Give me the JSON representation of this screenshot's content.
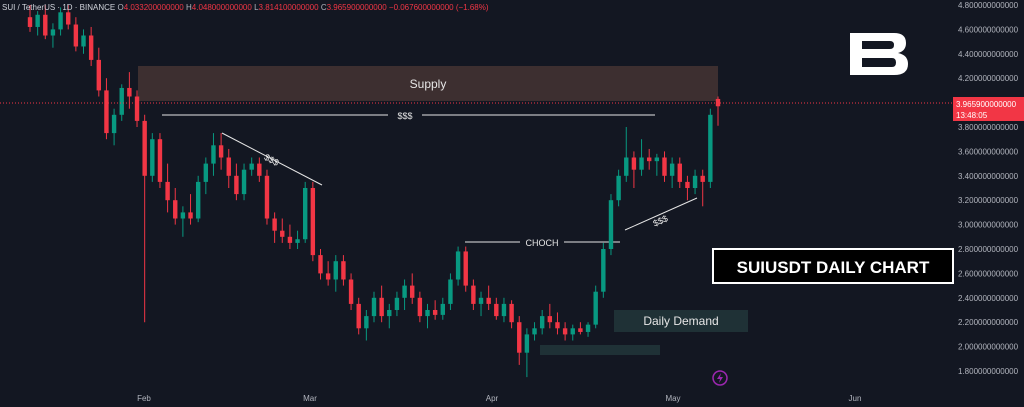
{
  "header": {
    "symbol": "SUI / TetherUS · 1D · BINANCE",
    "o_label": "O",
    "o_value": "4.033200000000",
    "h_label": "H",
    "h_value": "4.048000000000",
    "l_label": "L",
    "l_value": "3.814100000000",
    "c_label": "C",
    "c_value": "3.965900000000",
    "change": "−0.067600000000 (−1.68%)"
  },
  "colors": {
    "background": "#131722",
    "up": "#089981",
    "down": "#f23645",
    "text": "#d1d4dc",
    "grid_text": "#b2b5be",
    "supply_zone": "#3d2f30",
    "demand_zone": "#1f3136"
  },
  "annotations": {
    "supply_label": "Supply",
    "demand_label": "Daily Demand",
    "choch_label": "CHOCH",
    "liquidity_top": "$$$",
    "liquidity_left": "$$$",
    "liquidity_right": "$$$",
    "title_box": "SUIUSDT DAILY CHART"
  },
  "price_tag": {
    "price": "3.965900000000",
    "countdown": "13:48:05"
  },
  "logo_icon": "brand-b-logo-icon",
  "bolt_icon": "lightning-bolt-icon",
  "chart_data": {
    "type": "candlestick",
    "x_ticks": [
      "Feb",
      "Mar",
      "Apr",
      "May",
      "Jun"
    ],
    "y_ticks": [
      "4.800000000000",
      "4.600000000000",
      "4.400000000000",
      "4.200000000000",
      "4.000000000000",
      "3.800000000000",
      "3.600000000000",
      "3.400000000000",
      "3.200000000000",
      "3.000000000000",
      "2.800000000000",
      "2.600000000000",
      "2.400000000000",
      "2.200000000000",
      "2.000000000000",
      "1.800000000000"
    ],
    "ylim": [
      1.72,
      4.82
    ],
    "candles": [
      {
        "o": 4.7,
        "h": 4.8,
        "l": 4.58,
        "c": 4.62
      },
      {
        "o": 4.62,
        "h": 4.75,
        "l": 4.55,
        "c": 4.72
      },
      {
        "o": 4.72,
        "h": 4.8,
        "l": 4.52,
        "c": 4.55
      },
      {
        "o": 4.55,
        "h": 4.65,
        "l": 4.45,
        "c": 4.6
      },
      {
        "o": 4.6,
        "h": 4.78,
        "l": 4.55,
        "c": 4.74
      },
      {
        "o": 4.74,
        "h": 4.8,
        "l": 4.6,
        "c": 4.64
      },
      {
        "o": 4.64,
        "h": 4.7,
        "l": 4.42,
        "c": 4.46
      },
      {
        "o": 4.46,
        "h": 4.6,
        "l": 4.4,
        "c": 4.55
      },
      {
        "o": 4.55,
        "h": 4.62,
        "l": 4.3,
        "c": 4.35
      },
      {
        "o": 4.35,
        "h": 4.45,
        "l": 4.05,
        "c": 4.1
      },
      {
        "o": 4.1,
        "h": 4.2,
        "l": 3.7,
        "c": 3.75
      },
      {
        "o": 3.75,
        "h": 3.95,
        "l": 3.65,
        "c": 3.9
      },
      {
        "o": 3.9,
        "h": 4.15,
        "l": 3.85,
        "c": 4.12
      },
      {
        "o": 4.12,
        "h": 4.25,
        "l": 3.95,
        "c": 4.05
      },
      {
        "o": 4.05,
        "h": 4.1,
        "l": 3.8,
        "c": 3.85
      },
      {
        "o": 3.85,
        "h": 3.9,
        "l": 2.2,
        "c": 3.4
      },
      {
        "o": 3.4,
        "h": 3.75,
        "l": 3.35,
        "c": 3.7
      },
      {
        "o": 3.7,
        "h": 3.75,
        "l": 3.3,
        "c": 3.35
      },
      {
        "o": 3.35,
        "h": 3.5,
        "l": 3.1,
        "c": 3.2
      },
      {
        "o": 3.2,
        "h": 3.3,
        "l": 3.0,
        "c": 3.05
      },
      {
        "o": 3.05,
        "h": 3.15,
        "l": 2.9,
        "c": 3.1
      },
      {
        "o": 3.1,
        "h": 3.25,
        "l": 3.0,
        "c": 3.05
      },
      {
        "o": 3.05,
        "h": 3.4,
        "l": 3.02,
        "c": 3.35
      },
      {
        "o": 3.35,
        "h": 3.55,
        "l": 3.25,
        "c": 3.5
      },
      {
        "o": 3.5,
        "h": 3.75,
        "l": 3.4,
        "c": 3.65
      },
      {
        "o": 3.65,
        "h": 3.75,
        "l": 3.45,
        "c": 3.55
      },
      {
        "o": 3.55,
        "h": 3.62,
        "l": 3.3,
        "c": 3.4
      },
      {
        "o": 3.4,
        "h": 3.5,
        "l": 3.2,
        "c": 3.25
      },
      {
        "o": 3.25,
        "h": 3.5,
        "l": 3.2,
        "c": 3.45
      },
      {
        "o": 3.45,
        "h": 3.55,
        "l": 3.4,
        "c": 3.5
      },
      {
        "o": 3.5,
        "h": 3.55,
        "l": 3.35,
        "c": 3.4
      },
      {
        "o": 3.4,
        "h": 3.45,
        "l": 3.0,
        "c": 3.05
      },
      {
        "o": 3.05,
        "h": 3.1,
        "l": 2.85,
        "c": 2.95
      },
      {
        "o": 2.95,
        "h": 3.05,
        "l": 2.85,
        "c": 2.9
      },
      {
        "o": 2.9,
        "h": 3.0,
        "l": 2.8,
        "c": 2.85
      },
      {
        "o": 2.85,
        "h": 2.95,
        "l": 2.8,
        "c": 2.88
      },
      {
        "o": 2.88,
        "h": 3.35,
        "l": 2.85,
        "c": 3.3
      },
      {
        "o": 3.3,
        "h": 3.35,
        "l": 2.7,
        "c": 2.75
      },
      {
        "o": 2.75,
        "h": 2.8,
        "l": 2.55,
        "c": 2.6
      },
      {
        "o": 2.6,
        "h": 2.7,
        "l": 2.5,
        "c": 2.55
      },
      {
        "o": 2.55,
        "h": 2.75,
        "l": 2.45,
        "c": 2.7
      },
      {
        "o": 2.7,
        "h": 2.75,
        "l": 2.5,
        "c": 2.55
      },
      {
        "o": 2.55,
        "h": 2.6,
        "l": 2.3,
        "c": 2.35
      },
      {
        "o": 2.35,
        "h": 2.4,
        "l": 2.1,
        "c": 2.15
      },
      {
        "o": 2.15,
        "h": 2.3,
        "l": 2.05,
        "c": 2.25
      },
      {
        "o": 2.25,
        "h": 2.45,
        "l": 2.2,
        "c": 2.4
      },
      {
        "o": 2.4,
        "h": 2.5,
        "l": 2.2,
        "c": 2.25
      },
      {
        "o": 2.25,
        "h": 2.35,
        "l": 2.15,
        "c": 2.3
      },
      {
        "o": 2.3,
        "h": 2.45,
        "l": 2.25,
        "c": 2.4
      },
      {
        "o": 2.4,
        "h": 2.55,
        "l": 2.3,
        "c": 2.5
      },
      {
        "o": 2.5,
        "h": 2.6,
        "l": 2.35,
        "c": 2.4
      },
      {
        "o": 2.4,
        "h": 2.45,
        "l": 2.2,
        "c": 2.25
      },
      {
        "o": 2.25,
        "h": 2.35,
        "l": 2.15,
        "c": 2.3
      },
      {
        "o": 2.3,
        "h": 2.38,
        "l": 2.22,
        "c": 2.26
      },
      {
        "o": 2.26,
        "h": 2.4,
        "l": 2.22,
        "c": 2.35
      },
      {
        "o": 2.35,
        "h": 2.6,
        "l": 2.3,
        "c": 2.55
      },
      {
        "o": 2.55,
        "h": 2.82,
        "l": 2.5,
        "c": 2.78
      },
      {
        "o": 2.78,
        "h": 2.82,
        "l": 2.45,
        "c": 2.5
      },
      {
        "o": 2.5,
        "h": 2.55,
        "l": 2.3,
        "c": 2.35
      },
      {
        "o": 2.35,
        "h": 2.45,
        "l": 2.25,
        "c": 2.4
      },
      {
        "o": 2.4,
        "h": 2.5,
        "l": 2.3,
        "c": 2.35
      },
      {
        "o": 2.35,
        "h": 2.4,
        "l": 2.22,
        "c": 2.25
      },
      {
        "o": 2.25,
        "h": 2.4,
        "l": 2.2,
        "c": 2.35
      },
      {
        "o": 2.35,
        "h": 2.38,
        "l": 2.15,
        "c": 2.2
      },
      {
        "o": 2.2,
        "h": 2.25,
        "l": 1.85,
        "c": 1.95
      },
      {
        "o": 1.95,
        "h": 2.15,
        "l": 1.75,
        "c": 2.1
      },
      {
        "o": 2.1,
        "h": 2.2,
        "l": 2.05,
        "c": 2.15
      },
      {
        "o": 2.15,
        "h": 2.3,
        "l": 2.1,
        "c": 2.25
      },
      {
        "o": 2.25,
        "h": 2.35,
        "l": 2.15,
        "c": 2.2
      },
      {
        "o": 2.2,
        "h": 2.28,
        "l": 2.1,
        "c": 2.15
      },
      {
        "o": 2.15,
        "h": 2.2,
        "l": 2.05,
        "c": 2.1
      },
      {
        "o": 2.1,
        "h": 2.18,
        "l": 2.05,
        "c": 2.15
      },
      {
        "o": 2.15,
        "h": 2.2,
        "l": 2.1,
        "c": 2.12
      },
      {
        "o": 2.12,
        "h": 2.2,
        "l": 2.08,
        "c": 2.18
      },
      {
        "o": 2.18,
        "h": 2.5,
        "l": 2.15,
        "c": 2.45
      },
      {
        "o": 2.45,
        "h": 2.85,
        "l": 2.4,
        "c": 2.8
      },
      {
        "o": 2.8,
        "h": 3.25,
        "l": 2.75,
        "c": 3.2
      },
      {
        "o": 3.2,
        "h": 3.45,
        "l": 3.15,
        "c": 3.4
      },
      {
        "o": 3.4,
        "h": 3.8,
        "l": 3.35,
        "c": 3.55
      },
      {
        "o": 3.55,
        "h": 3.6,
        "l": 3.3,
        "c": 3.45
      },
      {
        "o": 3.45,
        "h": 3.7,
        "l": 3.4,
        "c": 3.55
      },
      {
        "o": 3.55,
        "h": 3.62,
        "l": 3.45,
        "c": 3.52
      },
      {
        "o": 3.52,
        "h": 3.58,
        "l": 3.4,
        "c": 3.55
      },
      {
        "o": 3.55,
        "h": 3.6,
        "l": 3.35,
        "c": 3.4
      },
      {
        "o": 3.4,
        "h": 3.55,
        "l": 3.3,
        "c": 3.5
      },
      {
        "o": 3.5,
        "h": 3.55,
        "l": 3.3,
        "c": 3.35
      },
      {
        "o": 3.35,
        "h": 3.4,
        "l": 3.2,
        "c": 3.3
      },
      {
        "o": 3.3,
        "h": 3.45,
        "l": 3.25,
        "c": 3.4
      },
      {
        "o": 3.4,
        "h": 3.45,
        "l": 3.15,
        "c": 3.35
      },
      {
        "o": 3.35,
        "h": 3.95,
        "l": 3.3,
        "c": 3.9
      },
      {
        "o": 4.03,
        "h": 4.05,
        "l": 3.81,
        "c": 3.97
      }
    ]
  }
}
